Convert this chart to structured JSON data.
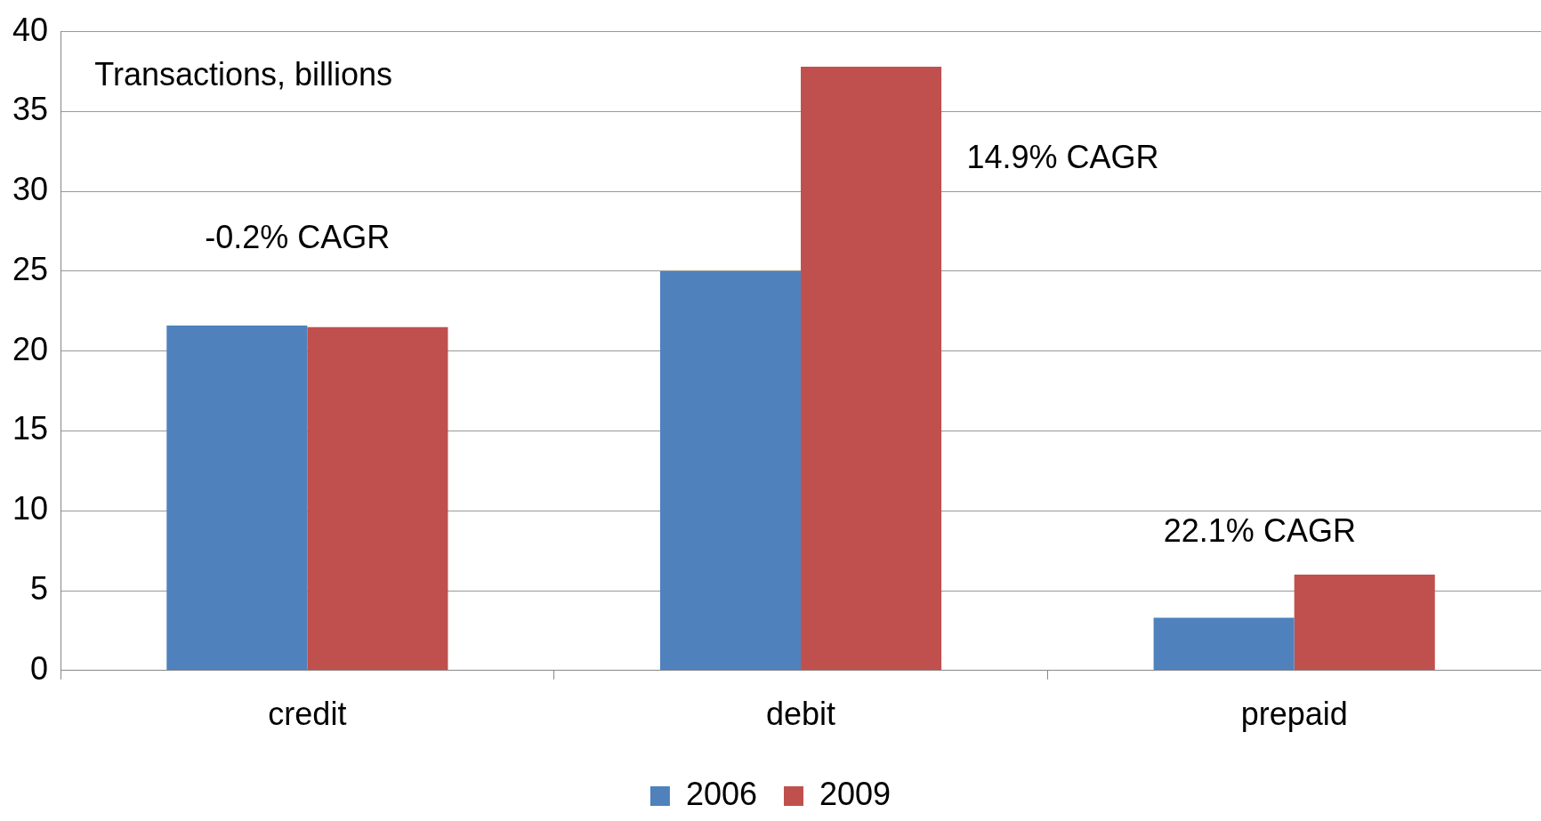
{
  "chart_data": {
    "type": "bar",
    "categories": [
      "credit",
      "debit",
      "prepaid"
    ],
    "series": [
      {
        "name": "2006",
        "color": "#4f81bd",
        "values": [
          21.6,
          25.0,
          3.3
        ]
      },
      {
        "name": "2009",
        "color": "#c0504d",
        "values": [
          21.5,
          37.8,
          6.0
        ]
      }
    ],
    "ylim": [
      0,
      40
    ],
    "yticks": [
      0,
      5,
      10,
      15,
      20,
      25,
      30,
      35,
      40
    ],
    "grid": "y",
    "legend": "bottom",
    "annotations": [
      "Transactions, billions",
      "-0.2% CAGR",
      "14.9% CAGR",
      "22.1% CAGR"
    ]
  }
}
